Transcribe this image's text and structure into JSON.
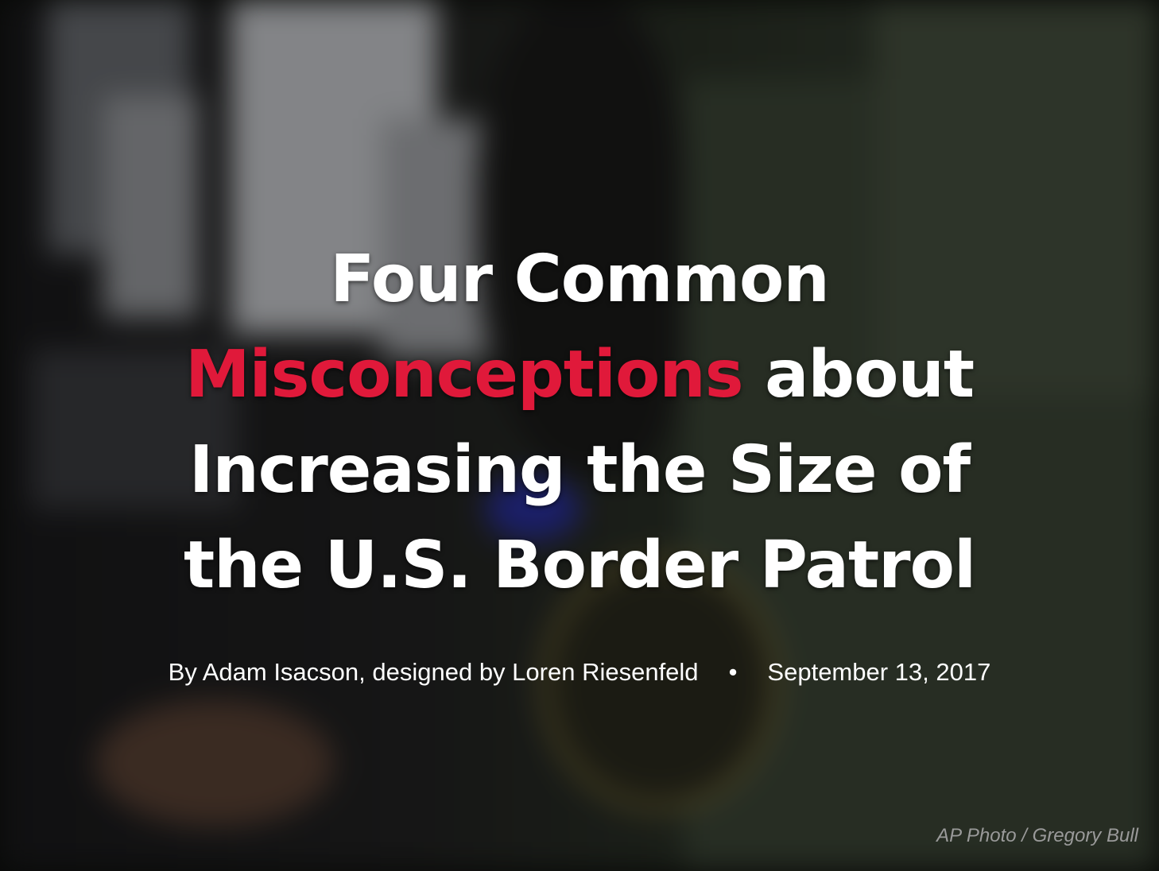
{
  "hero": {
    "title_line1": "Four Common",
    "title_highlight": "Misconceptions",
    "title_line2_rest": " about",
    "title_line3": "Increasing the Size of",
    "title_line4": "the U.S. Border Patrol",
    "accent_color": "#e0193a",
    "byline": "By Adam Isacson, designed by Loren Riesenfeld",
    "separator": "•",
    "date": "September 13, 2017",
    "photo_credit": "AP Photo / Gregory Bull"
  }
}
